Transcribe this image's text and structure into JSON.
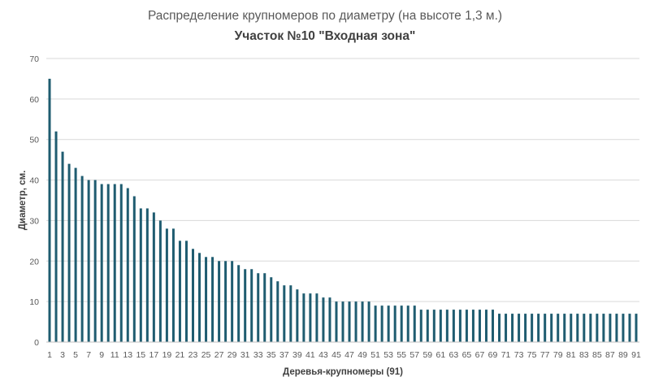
{
  "chart_data": {
    "type": "bar",
    "title": "Распределение крупномеров по диаметру (на высоте 1,3 м.)",
    "subtitle": "Участок №10 \"Входная зона\"",
    "xlabel": "Деревья-крупномеры (91)",
    "ylabel": "Диаметр, см.",
    "ylim": [
      0,
      70
    ],
    "yticks": [
      0,
      10,
      20,
      30,
      40,
      50,
      60,
      70
    ],
    "x_tick_labels_every": 2,
    "grid": true,
    "legend": "none",
    "bar_color": "#1f5c70",
    "categories": [
      1,
      2,
      3,
      4,
      5,
      6,
      7,
      8,
      9,
      10,
      11,
      12,
      13,
      14,
      15,
      16,
      17,
      18,
      19,
      20,
      21,
      22,
      23,
      24,
      25,
      26,
      27,
      28,
      29,
      30,
      31,
      32,
      33,
      34,
      35,
      36,
      37,
      38,
      39,
      40,
      41,
      42,
      43,
      44,
      45,
      46,
      47,
      48,
      49,
      50,
      51,
      52,
      53,
      54,
      55,
      56,
      57,
      58,
      59,
      60,
      61,
      62,
      63,
      64,
      65,
      66,
      67,
      68,
      69,
      70,
      71,
      72,
      73,
      74,
      75,
      76,
      77,
      78,
      79,
      80,
      81,
      82,
      83,
      84,
      85,
      86,
      87,
      88,
      89,
      90,
      91
    ],
    "values": [
      65,
      52,
      47,
      44,
      43,
      41,
      40,
      40,
      39,
      39,
      39,
      39,
      38,
      36,
      33,
      33,
      32,
      30,
      28,
      28,
      25,
      25,
      23,
      22,
      21,
      21,
      20,
      20,
      20,
      19,
      18,
      18,
      17,
      17,
      16,
      15,
      14,
      14,
      13,
      12,
      12,
      12,
      11,
      11,
      10,
      10,
      10,
      10,
      10,
      10,
      9,
      9,
      9,
      9,
      9,
      9,
      9,
      8,
      8,
      8,
      8,
      8,
      8,
      8,
      8,
      8,
      8,
      8,
      8,
      7,
      7,
      7,
      7,
      7,
      7,
      7,
      7,
      7,
      7,
      7,
      7,
      7,
      7,
      7,
      7,
      7,
      7,
      7,
      7,
      7,
      7
    ]
  }
}
